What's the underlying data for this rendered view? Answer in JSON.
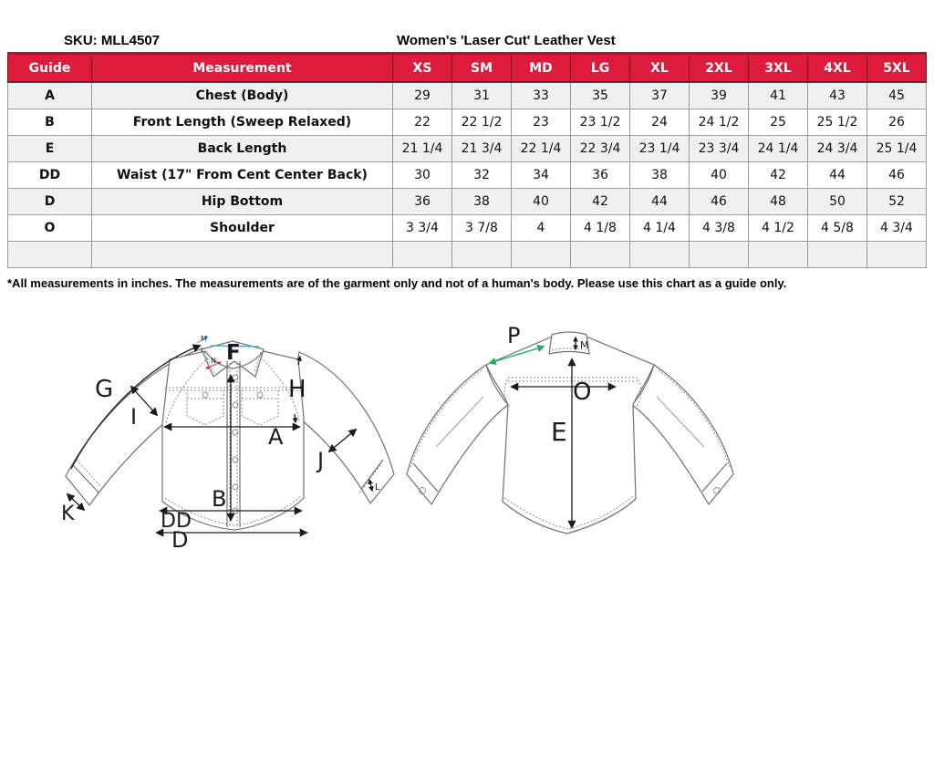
{
  "page": {
    "sku_label": "SKU: MLL4507",
    "product_title": "Women's 'Laser Cut' Leather Vest",
    "footnote": "*All measurements in inches. The measurements are of the garment only and not of a human's body. Please use this chart as a guide only."
  },
  "table": {
    "headers": [
      "Guide",
      "Measurement",
      "XS",
      "SM",
      "MD",
      "LG",
      "XL",
      "2XL",
      "3XL",
      "4XL",
      "5XL"
    ],
    "rows": [
      {
        "guide": "A",
        "name": "Chest (Body)",
        "values": [
          "29",
          "31",
          "33",
          "35",
          "37",
          "39",
          "41",
          "43",
          "45"
        ]
      },
      {
        "guide": "B",
        "name": "Front Length (Sweep Relaxed)",
        "values": [
          "22",
          "22 1/2",
          "23",
          "23 1/2",
          "24",
          "24 1/2",
          "25",
          "25 1/2",
          "26"
        ]
      },
      {
        "guide": "E",
        "name": "Back Length",
        "values": [
          "21 1/4",
          "21 3/4",
          "22 1/4",
          "22 3/4",
          "23 1/4",
          "23 3/4",
          "24 1/4",
          "24 3/4",
          "25 1/4"
        ]
      },
      {
        "guide": "DD",
        "name": "Waist (17\" From  Cent Center Back)",
        "values": [
          "30",
          "32",
          "34",
          "36",
          "38",
          "40",
          "42",
          "44",
          "46"
        ]
      },
      {
        "guide": "D",
        "name": "Hip Bottom",
        "values": [
          "36",
          "38",
          "40",
          "42",
          "44",
          "46",
          "48",
          "50",
          "52"
        ]
      },
      {
        "guide": "O",
        "name": "Shoulder",
        "values": [
          "3 3/4",
          "3 7/8",
          "4",
          "4 1/8",
          "4 1/4",
          "4 3/8",
          "4 1/2",
          "4 5/8",
          "4 3/4"
        ]
      },
      {
        "guide": "",
        "name": "",
        "values": [
          "",
          "",
          "",
          "",
          "",
          "",
          "",
          "",
          ""
        ]
      }
    ]
  },
  "diagram": {
    "front_labels": {
      "g": "G",
      "i": "I",
      "f": "F",
      "m_collar": "M",
      "n": "N",
      "h": "H",
      "a": "A",
      "j": "J",
      "b": "B",
      "k": "K",
      "l": "L",
      "dd": "DD",
      "d": "D"
    },
    "back_labels": {
      "p": "P",
      "m": "M",
      "o": "O",
      "e": "E"
    }
  },
  "colors": {
    "header_bg": "#DD1B3C",
    "header_text": "#FFFFFF",
    "row_alt_bg": "#F1F0F0",
    "grid_border": "#9B9B9B",
    "cyan_accent": "#29ABE2",
    "green_accent": "#1FAE5E",
    "red_accent": "#E00020"
  }
}
